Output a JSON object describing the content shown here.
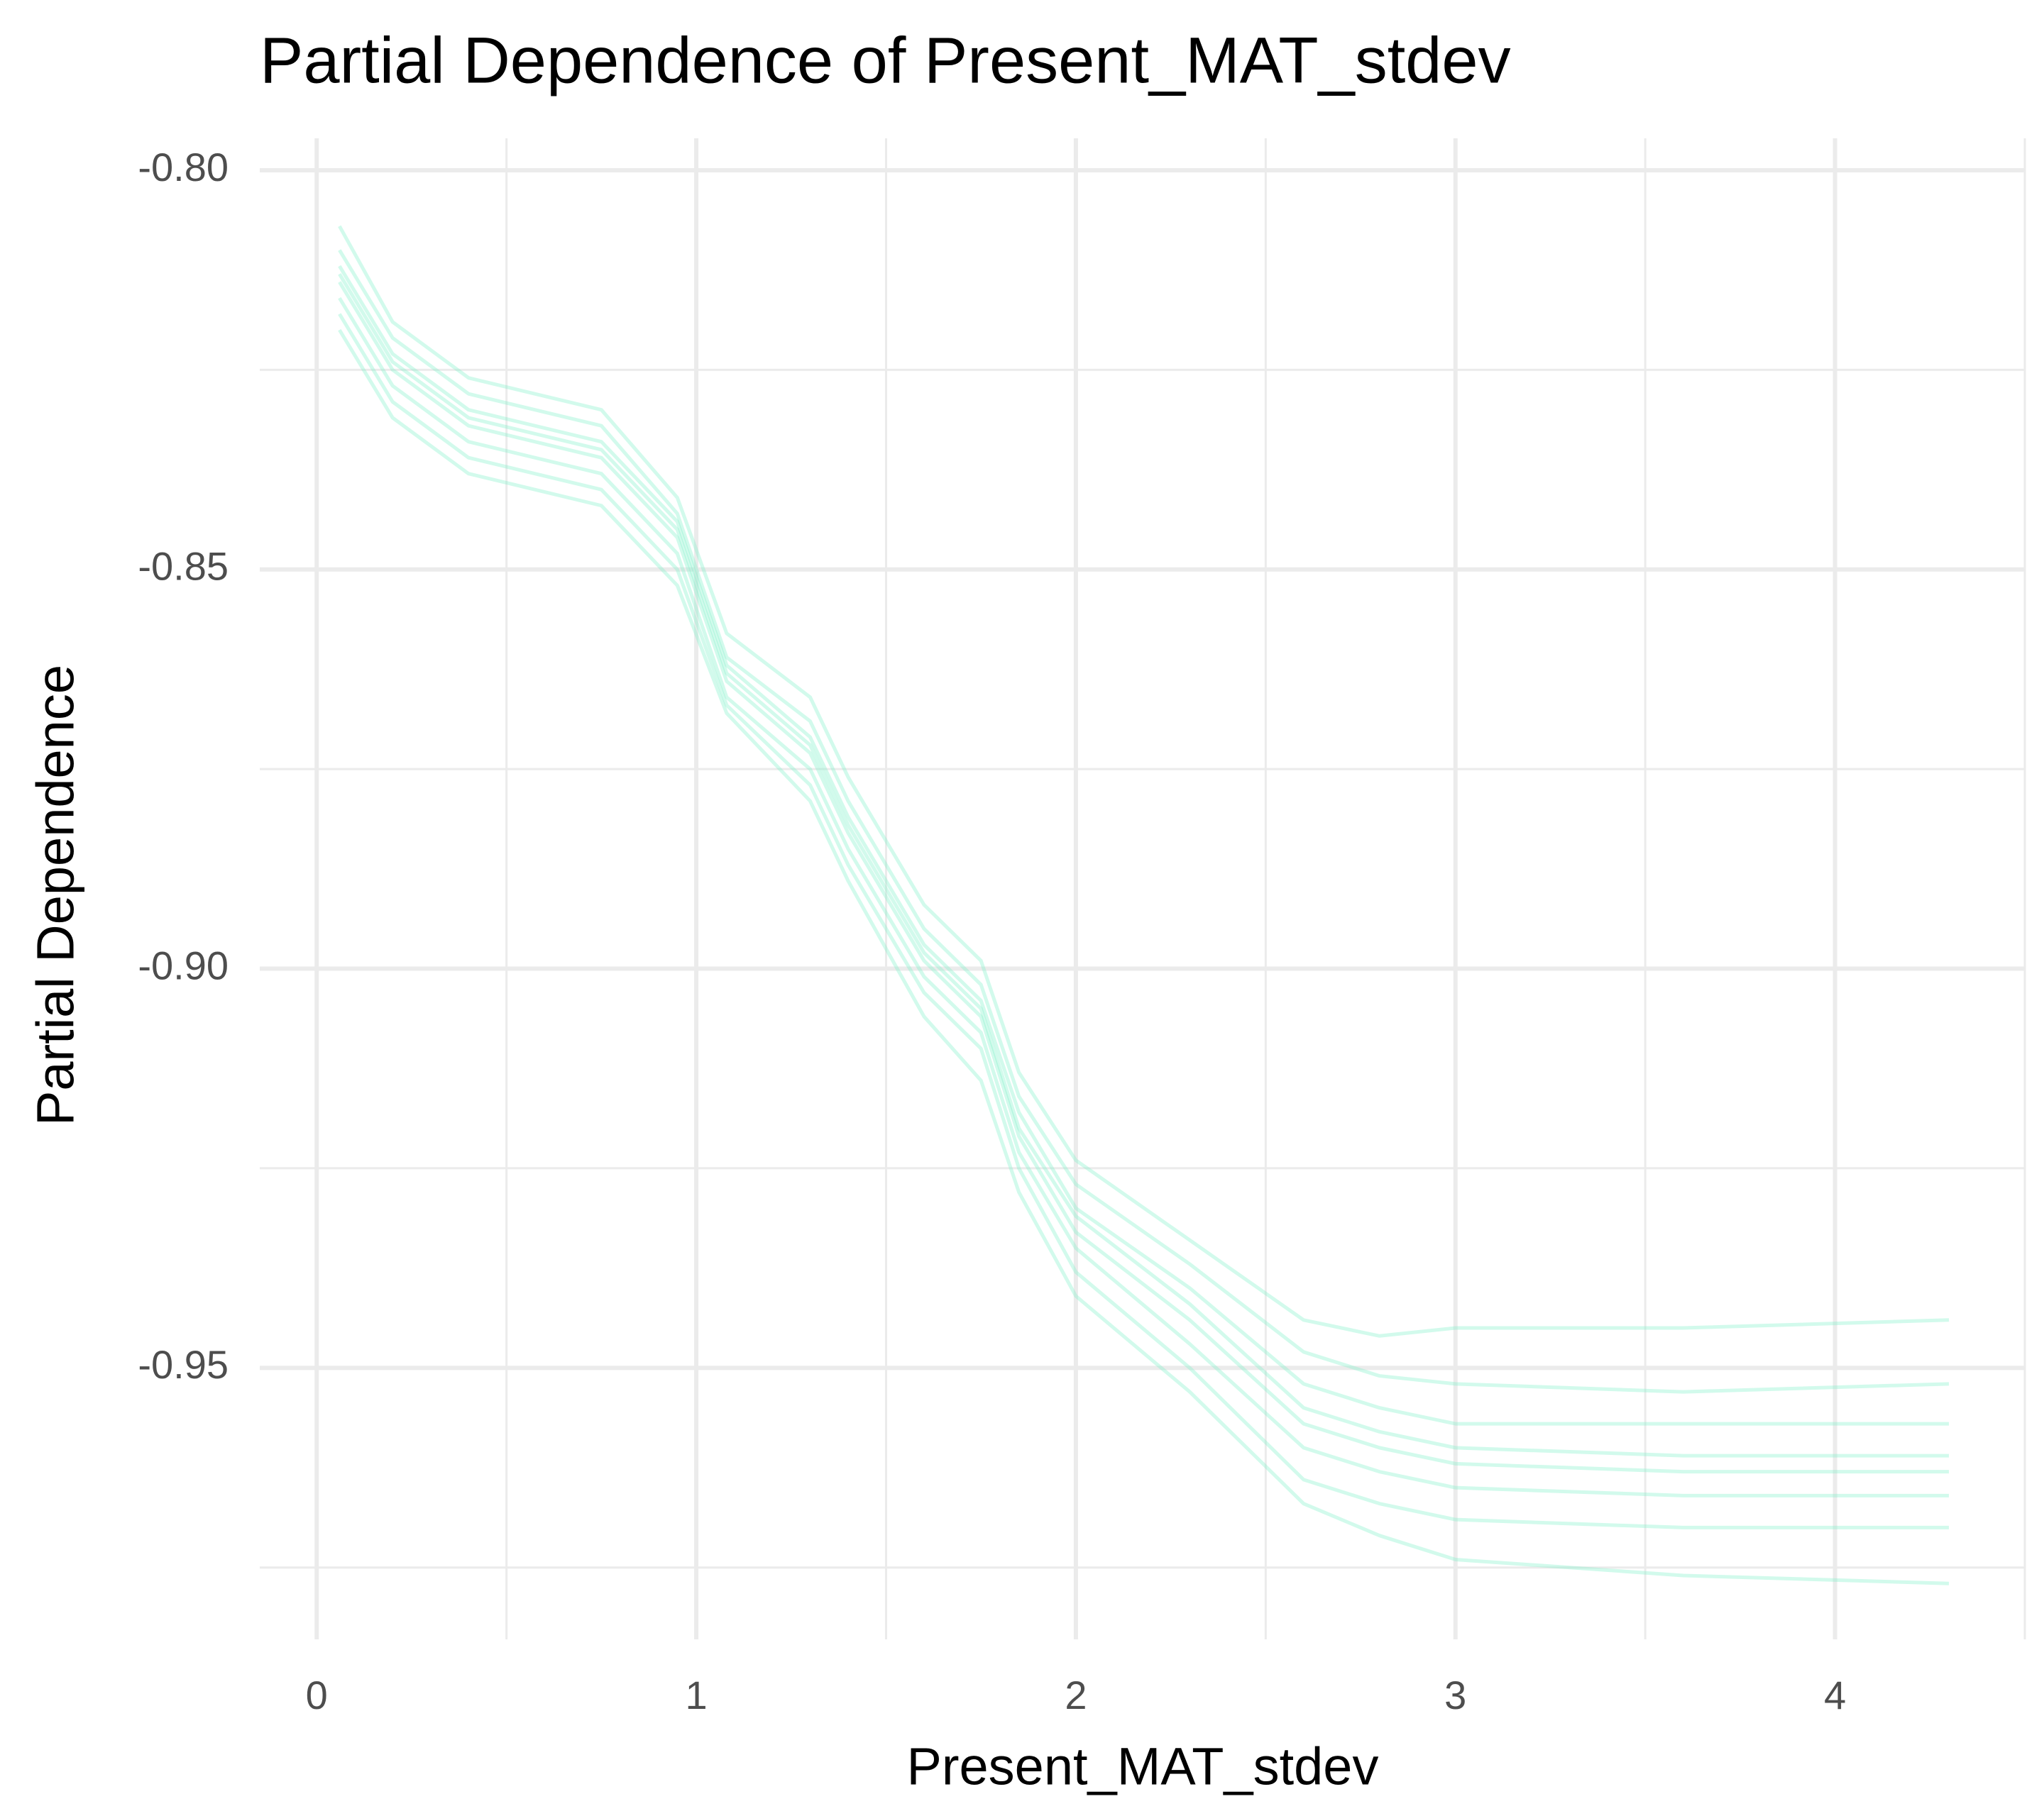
{
  "chart_data": {
    "type": "line",
    "title": "Partial Dependence of Present_MAT_stdev",
    "x_label": "Present_MAT_stdev",
    "y_label": "Partial Dependence",
    "xlim": [
      -0.15,
      4.5
    ],
    "ylim": [
      -0.984,
      -0.796
    ],
    "xticks": [
      0,
      1,
      2,
      3,
      4
    ],
    "yticks": [
      {
        "value": -0.8,
        "label": "-0.80"
      },
      -0.85,
      {
        "value": -0.9,
        "label": "-0.90"
      },
      -0.95
    ],
    "xminor": [
      0.5,
      1.5,
      2.5,
      3.5,
      4.5
    ],
    "yminor": [
      -0.825,
      -0.875,
      -0.925,
      -0.975
    ],
    "grid": true,
    "opacity": 0.35,
    "x": [
      0.06,
      0.2,
      0.4,
      0.75,
      0.95,
      1.08,
      1.3,
      1.4,
      1.6,
      1.75,
      1.85,
      2.0,
      2.3,
      2.6,
      2.8,
      3.0,
      3.6,
      4.3
    ],
    "series": [
      {
        "color": "#7ef0c8",
        "values": [
          -0.807,
          -0.819,
          -0.826,
          -0.83,
          -0.841,
          -0.858,
          -0.866,
          -0.876,
          -0.892,
          -0.899,
          -0.913,
          -0.924,
          -0.934,
          -0.944,
          -0.946,
          -0.945,
          -0.945,
          -0.944
        ]
      },
      {
        "color": "#7ef0c8",
        "values": [
          -0.81,
          -0.821,
          -0.828,
          -0.832,
          -0.843,
          -0.861,
          -0.869,
          -0.879,
          -0.895,
          -0.902,
          -0.916,
          -0.927,
          -0.937,
          -0.948,
          -0.951,
          -0.952,
          -0.953,
          -0.952
        ]
      },
      {
        "color": "#7ef0c8",
        "values": [
          -0.812,
          -0.823,
          -0.83,
          -0.834,
          -0.844,
          -0.862,
          -0.871,
          -0.881,
          -0.897,
          -0.904,
          -0.918,
          -0.93,
          -0.94,
          -0.952,
          -0.955,
          -0.957,
          -0.957,
          -0.957
        ]
      },
      {
        "color": "#7ef0c8",
        "values": [
          -0.813,
          -0.824,
          -0.831,
          -0.835,
          -0.845,
          -0.863,
          -0.872,
          -0.882,
          -0.898,
          -0.905,
          -0.92,
          -0.931,
          -0.942,
          -0.955,
          -0.958,
          -0.96,
          -0.961,
          -0.961
        ]
      },
      {
        "color": "#7ef0c8",
        "values": [
          -0.814,
          -0.825,
          -0.832,
          -0.836,
          -0.846,
          -0.864,
          -0.873,
          -0.883,
          -0.899,
          -0.906,
          -0.921,
          -0.933,
          -0.944,
          -0.957,
          -0.96,
          -0.962,
          -0.963,
          -0.963
        ]
      },
      {
        "color": "#7ef0c8",
        "values": [
          -0.816,
          -0.827,
          -0.834,
          -0.838,
          -0.848,
          -0.866,
          -0.875,
          -0.885,
          -0.901,
          -0.908,
          -0.923,
          -0.935,
          -0.947,
          -0.96,
          -0.963,
          -0.965,
          -0.966,
          -0.966
        ]
      },
      {
        "color": "#7ef0c8",
        "values": [
          -0.818,
          -0.829,
          -0.836,
          -0.84,
          -0.85,
          -0.867,
          -0.877,
          -0.887,
          -0.903,
          -0.91,
          -0.925,
          -0.938,
          -0.95,
          -0.964,
          -0.967,
          -0.969,
          -0.97,
          -0.97
        ]
      },
      {
        "color": "#7ef0c8",
        "values": [
          -0.82,
          -0.831,
          -0.838,
          -0.842,
          -0.852,
          -0.868,
          -0.879,
          -0.889,
          -0.906,
          -0.914,
          -0.928,
          -0.941,
          -0.953,
          -0.967,
          -0.971,
          -0.974,
          -0.976,
          -0.977
        ]
      }
    ]
  }
}
